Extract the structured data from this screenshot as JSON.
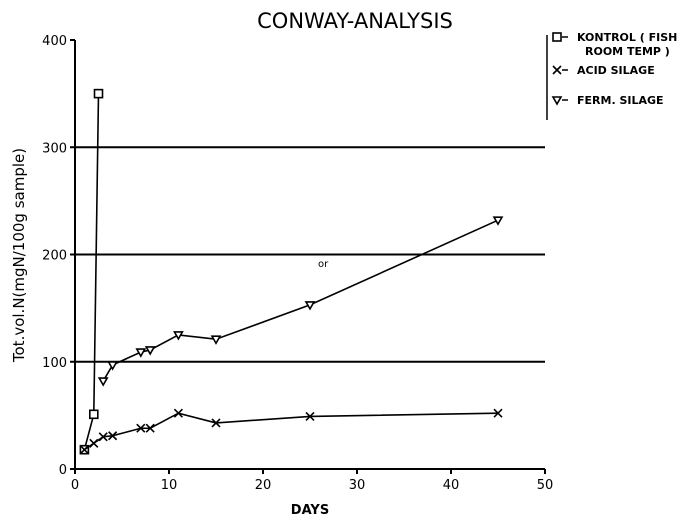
{
  "chart_data": {
    "type": "line",
    "title": "CONWAY-ANALYSIS",
    "xlabel": "DAYS",
    "ylabel": "Tot.vol.N(mgN/100g sample)",
    "xlim": [
      0,
      50
    ],
    "ylim": [
      0,
      400
    ],
    "xticks": [
      0,
      10,
      20,
      30,
      40,
      50
    ],
    "yticks": [
      0,
      100,
      200,
      300,
      400
    ],
    "grid": "horizontal",
    "legend_position": "top-right",
    "annotation": "or",
    "series": [
      {
        "name": "KONTROL (FISH ROOM TEMP)",
        "legend_lines": [
          "KONTROL ( FISH",
          "ROOM TEMP )"
        ],
        "marker": "square",
        "x": [
          1,
          2,
          2.5
        ],
        "y": [
          18,
          51,
          350
        ]
      },
      {
        "name": "ACID SILAGE",
        "marker": "x",
        "x": [
          1,
          2,
          3,
          4,
          7,
          8,
          11,
          15,
          25,
          45
        ],
        "y": [
          18,
          24,
          30,
          31,
          38,
          38,
          52,
          43,
          49,
          52
        ]
      },
      {
        "name": "FERM. SILAGE",
        "marker": "triangle-down",
        "x": [
          3,
          4,
          7,
          8,
          11,
          15,
          25,
          45
        ],
        "y": [
          82,
          97,
          109,
          111,
          125,
          121,
          153,
          232
        ]
      }
    ]
  }
}
